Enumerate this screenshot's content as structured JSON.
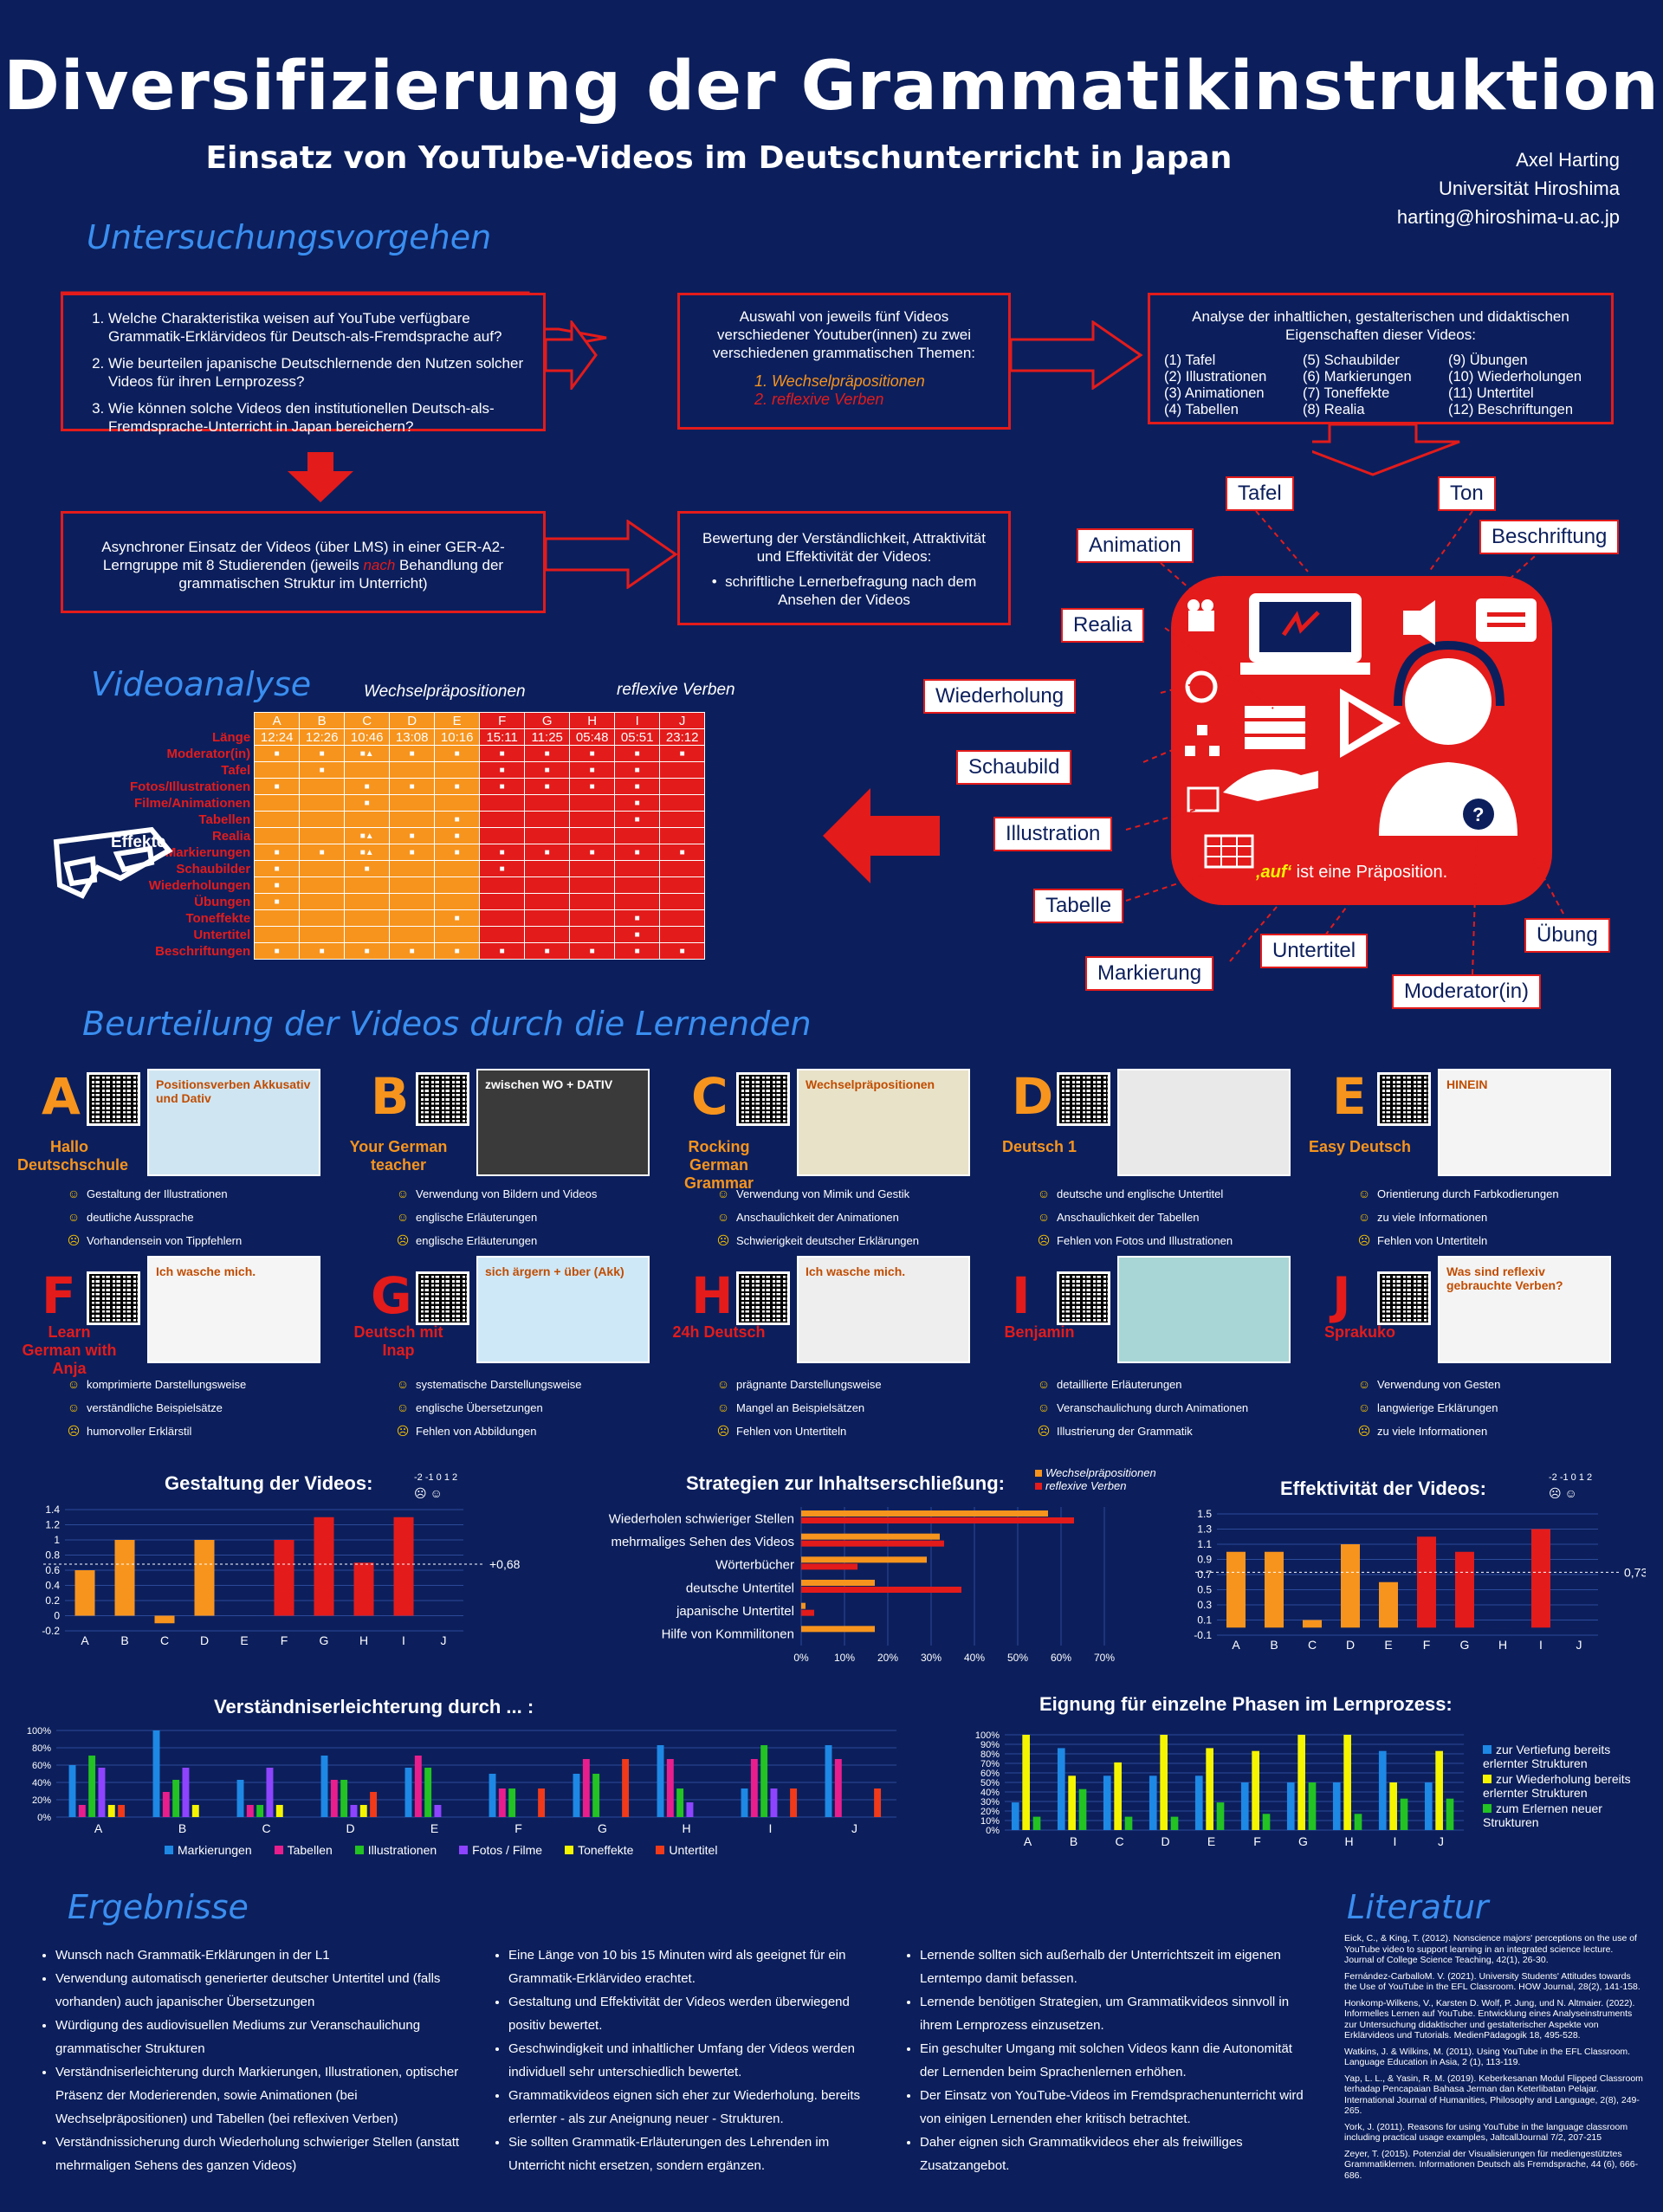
{
  "header": {
    "title": "Diversifizierung der Grammatikinstruktion",
    "subtitle": "Einsatz von YouTube-Videos im Deutschunterricht in Japan",
    "author": "Axel Harting",
    "affiliation": "Universität Hiroshima",
    "email": "harting@hiroshima-u.ac.jp"
  },
  "sections": {
    "untersuchung": "Untersuchungsvorgehen",
    "videoanalyse": "Videoanalyse",
    "beurteilung": "Beurteilung der Videos durch die Lernenden",
    "ergebnisse": "Ergebnisse",
    "literatur": "Literatur"
  },
  "procedure": {
    "questions": [
      "Welche Charakteristika weisen auf YouTube verfügbare Grammatik-Erklärvideos für Deutsch-als-Fremdsprache auf?",
      "Wie beurteilen japanische Deutschlernende den Nutzen solcher Videos für ihren Lernprozess?",
      "Wie können solche Videos den institutionellen Deutsch-als-Fremdsprache-Unterricht in Japan bereichern?"
    ],
    "selection_text": "Auswahl von jeweils fünf Videos verschiedener Youtuber(innen) zu zwei verschiedenen grammatischen Themen:",
    "themes": [
      "1.  Wechselpräpositionen",
      "2.  reflexive Verben"
    ],
    "analysis_title": "Analyse der inhaltlichen, gestalterischen und didaktischen Eigenschaften dieser Videos:",
    "analysis_items": [
      [
        "(1) Tafel",
        "(2) Illustrationen",
        "(3) Animationen",
        "(4) Tabellen"
      ],
      [
        "(5) Schaubilder",
        "(6) Markierungen",
        "(7) Toneffekte",
        "(8) Realia"
      ],
      [
        "(9) Übungen",
        "(10) Wiederholungen",
        "(11) Untertitel",
        "(12) Beschriftungen"
      ]
    ],
    "async_text": "Asynchroner Einsatz der Videos (über LMS) in einer GER-A2-Lerngruppe mit 8 Studierenden (jeweils",
    "async_nach": "nach",
    "async_text2": "Behandlung der grammatischen Struktur im Unterricht)",
    "eval_title": "Bewertung der Verständlichkeit, Attraktivität und Effektivität der Videos:",
    "eval_item": "schriftliche Lernerbefragung nach dem Ansehen der Videos"
  },
  "video_table": {
    "group1": "Wechselpräpositionen",
    "group2": "reflexive Verben",
    "columns": [
      "A",
      "B",
      "C",
      "D",
      "E",
      "F",
      "G",
      "H",
      "I",
      "J"
    ],
    "laenge": [
      "12:24",
      "12:26",
      "10:46",
      "13:08",
      "10:16",
      "15:11",
      "11:25",
      "05:48",
      "05:51",
      "23:12"
    ],
    "row_labels": [
      "Länge",
      "Moderator(in)",
      "Tafel",
      "Fotos/Illustrationen",
      "Filme/Animationen",
      "Tabellen",
      "Realia",
      "Markierungen",
      "Schaubilder",
      "Wiederholungen",
      "Übungen",
      "Toneffekte",
      "Untertitel",
      "Beschriftungen"
    ],
    "marks": [
      [
        "■",
        "■",
        "■▲",
        "■",
        "■",
        "■",
        "■",
        "■",
        "■",
        "■"
      ],
      [
        "",
        "■",
        "",
        "",
        "",
        "■",
        "■",
        "■",
        "■",
        ""
      ],
      [
        "■",
        "",
        "■",
        "■",
        "■",
        "■",
        "■",
        "■",
        "■",
        ""
      ],
      [
        "",
        "",
        "■",
        "",
        "",
        "",
        "",
        "",
        "■",
        ""
      ],
      [
        "",
        "",
        "",
        "",
        "■",
        "",
        "",
        "",
        "■",
        ""
      ],
      [
        "",
        "",
        "■▲",
        "■",
        "■",
        "",
        "",
        "",
        "",
        ""
      ],
      [
        "■",
        "■",
        "■▲",
        "■",
        "■",
        "■",
        "■",
        "■",
        "■",
        "■"
      ],
      [
        "■",
        "",
        "■",
        "",
        "",
        "■",
        "",
        "",
        "",
        ""
      ],
      [
        "■",
        "",
        "",
        "",
        "",
        "",
        "",
        "",
        "",
        ""
      ],
      [
        "■",
        "",
        "",
        "",
        "",
        "",
        "",
        "",
        "",
        ""
      ],
      [
        "",
        "",
        "",
        "",
        "■",
        "",
        "",
        "",
        "■",
        ""
      ],
      [
        "",
        "",
        "",
        "",
        "",
        "",
        "",
        "",
        "■",
        ""
      ],
      [
        "■",
        "■",
        "■",
        "■",
        "■",
        "■",
        "■",
        "■",
        "■",
        "■"
      ]
    ],
    "effects_label": "Effekte"
  },
  "diagram_labels": {
    "tafel": "Tafel",
    "ton": "Ton",
    "beschriftung": "Beschriftung",
    "animation": "Animation",
    "realia": "Realia",
    "wiederholung": "Wiederholung",
    "schaubild": "Schaubild",
    "illustration": "Illustration",
    "tabelle": "Tabelle",
    "markierung": "Markierung",
    "untertitel": "Untertitel",
    "moderator": "Moderator(in)",
    "uebung": "Übung",
    "caption_auf": "‚auf‘",
    "caption_rest": " ist eine Präposition."
  },
  "videos": [
    {
      "letter": "A",
      "name": "Hallo Deutschschule",
      "thumb": "Positionsverben Akkusativ und Dativ",
      "comments": [
        "Gestaltung der Illustrationen",
        "deutliche Aussprache",
        "Vorhandensein von Tippfehlern"
      ]
    },
    {
      "letter": "B",
      "name": "Your German teacher",
      "thumb": "zwischen  WO + DATIV",
      "comments": [
        "Verwendung von Bildern und Videos",
        "englische Erläuterungen",
        "englische Erläuterungen"
      ]
    },
    {
      "letter": "C",
      "name": "Rocking German Grammar",
      "thumb": "Wechselpräpositionen",
      "comments": [
        "Verwendung von Mimik und Gestik",
        "Anschaulichkeit der Animationen",
        "Schwierigkeit deutscher Erklärungen"
      ]
    },
    {
      "letter": "D",
      "name": "Deutsch 1",
      "thumb": "",
      "comments": [
        "deutsche und englische Untertitel",
        "Anschaulichkeit der Tabellen",
        "Fehlen von Fotos und Illustrationen"
      ]
    },
    {
      "letter": "E",
      "name": "Easy Deutsch",
      "thumb": "HINEIN",
      "comments": [
        "Orientierung durch Farbkodierungen",
        "zu viele Informationen",
        "Fehlen von Untertiteln"
      ]
    },
    {
      "letter": "F",
      "name": "Learn German with Anja",
      "thumb": "Ich wasche mich.",
      "comments": [
        "komprimierte Darstellungsweise",
        "verständliche Beispielsätze",
        "humorvoller Erklärstil"
      ]
    },
    {
      "letter": "G",
      "name": "Deutsch mit Inap",
      "thumb": "sich ärgern + über (Akk)",
      "comments": [
        "systematische Darstellungsweise",
        "englische Übersetzungen",
        "Fehlen von Abbildungen"
      ]
    },
    {
      "letter": "H",
      "name": "24h Deutsch",
      "thumb": "Ich wasche mich.",
      "comments": [
        "prägnante Darstellungsweise",
        "Mangel an Beispielsätzen",
        "Fehlen von Untertiteln"
      ]
    },
    {
      "letter": "I",
      "name": "Benjamin",
      "thumb": "",
      "comments": [
        "detaillierte Erläuterungen",
        "Veranschaulichung durch Animationen",
        "Illustrierung der Grammatik"
      ]
    },
    {
      "letter": "J",
      "name": "Sprakuko",
      "thumb": "Was sind reflexiv gebrauchte Verben?",
      "comments": [
        "Verwendung von Gesten",
        "langwierige Erklärungen",
        "zu viele Informationen"
      ]
    }
  ],
  "chart_data": [
    {
      "type": "bar",
      "title": "Gestaltung der Videos:",
      "categories": [
        "A",
        "B",
        "C",
        "D",
        "E",
        "F",
        "G",
        "H",
        "I",
        "J"
      ],
      "values": [
        0.6,
        1.0,
        -0.1,
        1.0,
        0,
        1.0,
        1.3,
        0.7,
        1.3,
        0
      ],
      "colors": [
        "#f7941d",
        "#f7941d",
        "#f7941d",
        "#f7941d",
        "#f7941d",
        "#e31b1b",
        "#e31b1b",
        "#e31b1b",
        "#e31b1b",
        "#e31b1b"
      ],
      "ylim": [
        -0.2,
        1.4
      ],
      "yticks": [
        "1.4",
        "1.2",
        "1",
        "0.8",
        "0.6",
        "0.4",
        "0.2",
        "0",
        "-0.2"
      ],
      "average": 0.68,
      "average_label": "+0,68",
      "scale_label": "-2 -1 0 1 2"
    },
    {
      "type": "bar",
      "orientation": "horizontal",
      "title": "Strategien zur Inhaltserschließung:",
      "categories": [
        "Wiederholen schwieriger Stellen",
        "mehrmaliges Sehen des Videos",
        "Wörterbücher",
        "deutsche Untertitel",
        "japanische Untertitel",
        "Hilfe von Kommilitonen"
      ],
      "series": [
        {
          "name": "Wechselpräpositionen",
          "color": "#f7941d",
          "values": [
            57,
            32,
            29,
            17,
            1,
            17
          ]
        },
        {
          "name": "reflexive Verben",
          "color": "#e31b1b",
          "values": [
            63,
            33,
            13,
            37,
            3,
            0
          ]
        }
      ],
      "xlim": [
        0,
        70
      ],
      "xticks": [
        "0%",
        "10%",
        "20%",
        "30%",
        "40%",
        "50%",
        "60%",
        "70%"
      ]
    },
    {
      "type": "bar",
      "title": "Effektivität der Videos:",
      "categories": [
        "A",
        "B",
        "C",
        "D",
        "E",
        "F",
        "G",
        "H",
        "I",
        "J"
      ],
      "values": [
        1.0,
        1.0,
        0.1,
        1.1,
        0.6,
        1.2,
        1.0,
        0,
        1.3,
        0
      ],
      "colors": [
        "#f7941d",
        "#f7941d",
        "#f7941d",
        "#f7941d",
        "#f7941d",
        "#e31b1b",
        "#e31b1b",
        "#e31b1b",
        "#e31b1b",
        "#e31b1b"
      ],
      "ylim": [
        -0.1,
        1.5
      ],
      "yticks": [
        "1.5",
        "1.3",
        "1.1",
        "0.9",
        "0.7",
        "0.5",
        "0.3",
        "0.1",
        "-0.1"
      ],
      "average": 0.73,
      "average_label": "0,73",
      "scale_label": "-2 -1 0 1 2"
    },
    {
      "type": "bar",
      "title": "Verständniserleichterung durch ... :",
      "categories": [
        "A",
        "B",
        "C",
        "D",
        "E",
        "F",
        "G",
        "H",
        "I",
        "J"
      ],
      "ylim": [
        0,
        100
      ],
      "yticks": [
        "100%",
        "80%",
        "60%",
        "40%",
        "20%",
        "0%"
      ],
      "series": [
        {
          "name": "Markierungen",
          "color": "#1e88e5",
          "values": [
            60,
            100,
            43,
            71,
            57,
            50,
            50,
            83,
            33,
            83
          ]
        },
        {
          "name": "Tabellen",
          "color": "#e91e8c",
          "values": [
            14,
            29,
            14,
            43,
            71,
            33,
            67,
            67,
            67,
            67
          ]
        },
        {
          "name": "Illustrationen",
          "color": "#22c322",
          "values": [
            71,
            43,
            14,
            43,
            57,
            33,
            50,
            33,
            83,
            0
          ]
        },
        {
          "name": "Fotos / Filme",
          "color": "#8e44ff",
          "values": [
            57,
            57,
            57,
            14,
            14,
            0,
            0,
            17,
            33,
            0
          ]
        },
        {
          "name": "Toneffekte",
          "color": "#f5f500",
          "values": [
            14,
            14,
            14,
            14,
            0,
            0,
            0,
            0,
            0,
            0
          ]
        },
        {
          "name": "Untertitel",
          "color": "#f03a1a",
          "values": [
            14,
            0,
            0,
            29,
            0,
            33,
            67,
            0,
            33,
            33
          ]
        }
      ]
    },
    {
      "type": "bar",
      "title": "Eignung für einzelne Phasen im Lernprozess:",
      "categories": [
        "A",
        "B",
        "C",
        "D",
        "E",
        "F",
        "G",
        "H",
        "I",
        "J"
      ],
      "ylim": [
        0,
        100
      ],
      "yticks": [
        "100%",
        "90%",
        "80%",
        "70%",
        "60%",
        "50%",
        "40%",
        "30%",
        "20%",
        "10%",
        "0%"
      ],
      "series": [
        {
          "name": "zur Vertiefung bereits erlernter Strukturen",
          "color": "#1e88e5",
          "values": [
            29,
            86,
            57,
            57,
            57,
            50,
            50,
            50,
            83,
            50
          ]
        },
        {
          "name": "zur Wiederholung bereits erlernter Strukturen",
          "color": "#f5f500",
          "values": [
            100,
            57,
            71,
            100,
            86,
            83,
            100,
            100,
            50,
            83
          ]
        },
        {
          "name": "zum Erlernen neuer Strukturen",
          "color": "#22c322",
          "values": [
            14,
            43,
            14,
            14,
            29,
            17,
            50,
            17,
            33,
            33
          ]
        }
      ]
    }
  ],
  "legend_top": {
    "wechsel": "Wechselpräpositionen",
    "reflexiv": "reflexive Verben"
  },
  "results": [
    [
      "Wunsch nach Grammatik-Erklärungen in der L1",
      "Verwendung automatisch generierter deutscher Untertitel und (falls vorhanden) auch japanischer Übersetzungen",
      "Würdigung des audiovisuellen Mediums zur Veranschaulichung grammatischer Strukturen",
      "Verständniserleichterung durch Markierungen, Illustrationen, optischer Präsenz der Moderierenden, sowie Animationen (bei Wechselpräpositionen) und Tabellen (bei reflexiven Verben)",
      "Verständnissicherung durch Wiederholung schwieriger Stellen (anstatt mehrmaligen Sehens des ganzen Videos)"
    ],
    [
      "Eine Länge von 10 bis 15 Minuten wird als geeignet für ein Grammatik-Erklärvideo erachtet.",
      "Gestaltung und Effektivität der Videos werden überwiegend positiv bewertet.",
      "Geschwindigkeit und inhaltlicher Umfang der Videos werden individuell sehr unterschiedlich bewertet.",
      "Grammatikvideos eignen sich eher zur Wiederholung. bereits erlernter - als zur Aneignung neuer - Strukturen.",
      "Sie sollten Grammatik-Erläuterungen des Lehrenden im Unterricht nicht ersetzen, sondern ergänzen."
    ],
    [
      "Lernende sollten sich außerhalb der Unterrichtszeit im eigenen Lerntempo damit befassen.",
      "Lernende benötigen Strategien, um Grammatikvideos sinnvoll in ihrem Lernprozess einzusetzen.",
      "Ein geschulter Umgang mit solchen Videos kann die Autonomität der Lernenden beim Sprachenlernen erhöhen.",
      "Der Einsatz von YouTube-Videos im Fremdsprachenunterricht wird von einigen Lernenden eher kritisch betrachtet.",
      "Daher eignen sich Grammatikvideos eher als freiwilliges Zusatzangebot."
    ]
  ],
  "literature": [
    "Eick, C., & King, T. (2012). Nonscience majors' perceptions on the use of YouTube video to support learning in an integrated science lecture. Journal of College Science Teaching, 42(1), 26-30.",
    "Fernández-CarballoM. V. (2021). University Students' Attitudes towards the Use of YouTube in the EFL Classroom. HOW Journal, 28(2), 141-158.",
    "Honkomp-Wilkens, V., Karsten D. Wolf, P. Jung, und N. Altmaier. (2022). Informelles Lernen auf YouTube. Entwicklung eines Analyseinstruments zur Untersuchung didaktischer und gestalterischer Aspekte von Erklärvideos und Tutorials. MedienPädagogik 18, 495-528.",
    "Watkins, J. & Wilkins, M. (2011). Using YouTube in the EFL Classroom. Language Education in Asia, 2 (1), 113-119.",
    "Yap, L. L., & Yasin, R. M. (2019). Keberkesanan Modul Flipped Classroom terhadap Pencapaian Bahasa Jerman dan Keterlibatan Pelajar. International Journal of Humanities, Philosophy and Language, 2(8), 249-265.",
    "York, J. (2011). Reasons for using YouTube in the language classroom including practical usage examples, JaltcallJournal 7/2, 207-215",
    "Zeyer, T. (2015). Potenzial der Visualisierungen für mediengestütztes Grammatiklernen. Informationen Deutsch als Fremdsprache, 44 (6), 666-686."
  ]
}
